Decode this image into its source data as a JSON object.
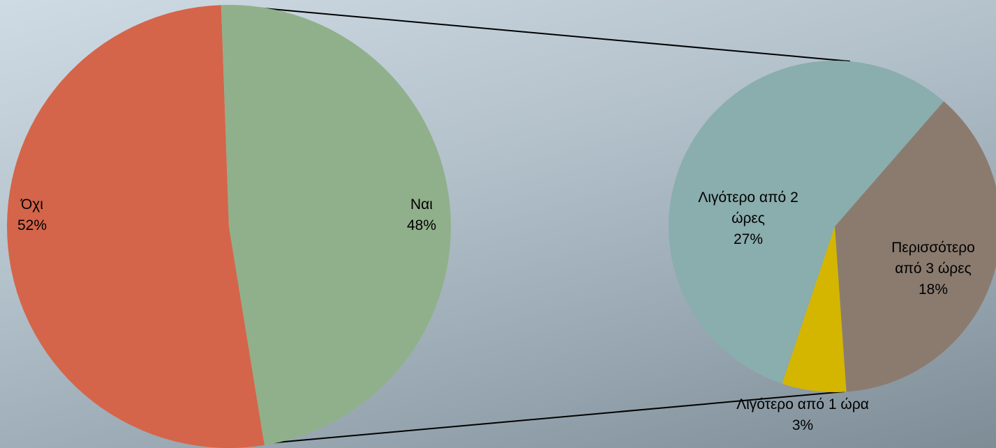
{
  "chart_data": {
    "type": "pie",
    "subtype": "pie-of-pie",
    "colors": {
      "Όχι": "#d4654a",
      "Ναι": "#90b08b",
      "Λιγότερο από 2 ώρες": "#8aadad",
      "Περισσότερο από 3 ώρες": "#8b7b6f",
      "Λιγότερο από 1 ώρα": "#d4b500"
    },
    "main_pie": {
      "slices": [
        {
          "label": "Όχι",
          "percent": "52%",
          "value": 52
        },
        {
          "label": "Ναι",
          "percent": "48%",
          "value": 48
        }
      ]
    },
    "secondary_pie": {
      "slices": [
        {
          "label": "Λιγότερο από 2 ώρες",
          "percent": "27%",
          "value": 27
        },
        {
          "label": "Περισσότερο από 3 ώρες",
          "percent": "18%",
          "value": 18
        },
        {
          "label": "Λιγότερο από 1 ώρα",
          "percent": "3%",
          "value": 3
        }
      ]
    }
  }
}
